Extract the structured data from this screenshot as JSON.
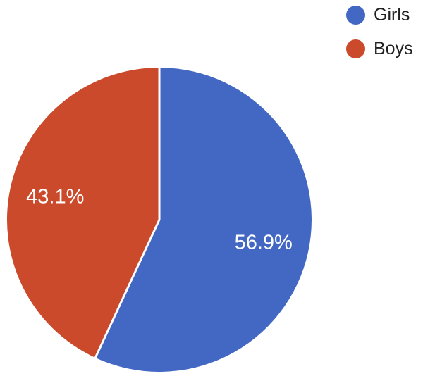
{
  "chart_data": {
    "type": "pie",
    "title": "",
    "categories": [
      "Girls",
      "Boys"
    ],
    "values": [
      56.9,
      43.1
    ],
    "slice_labels": [
      "56.9%",
      "43.1%"
    ],
    "colors": [
      "#4368C4",
      "#CB4A2B"
    ],
    "slice_label_color": "#FFFFFF",
    "separator_color": "#FFFFFF",
    "background_color": "#FFFFFF",
    "legend_text_color": "#212121",
    "start_angle_deg": 0,
    "direction": "clockwise",
    "legend_position": "top-right",
    "legend_entries": [
      "Girls",
      "Boys"
    ]
  }
}
